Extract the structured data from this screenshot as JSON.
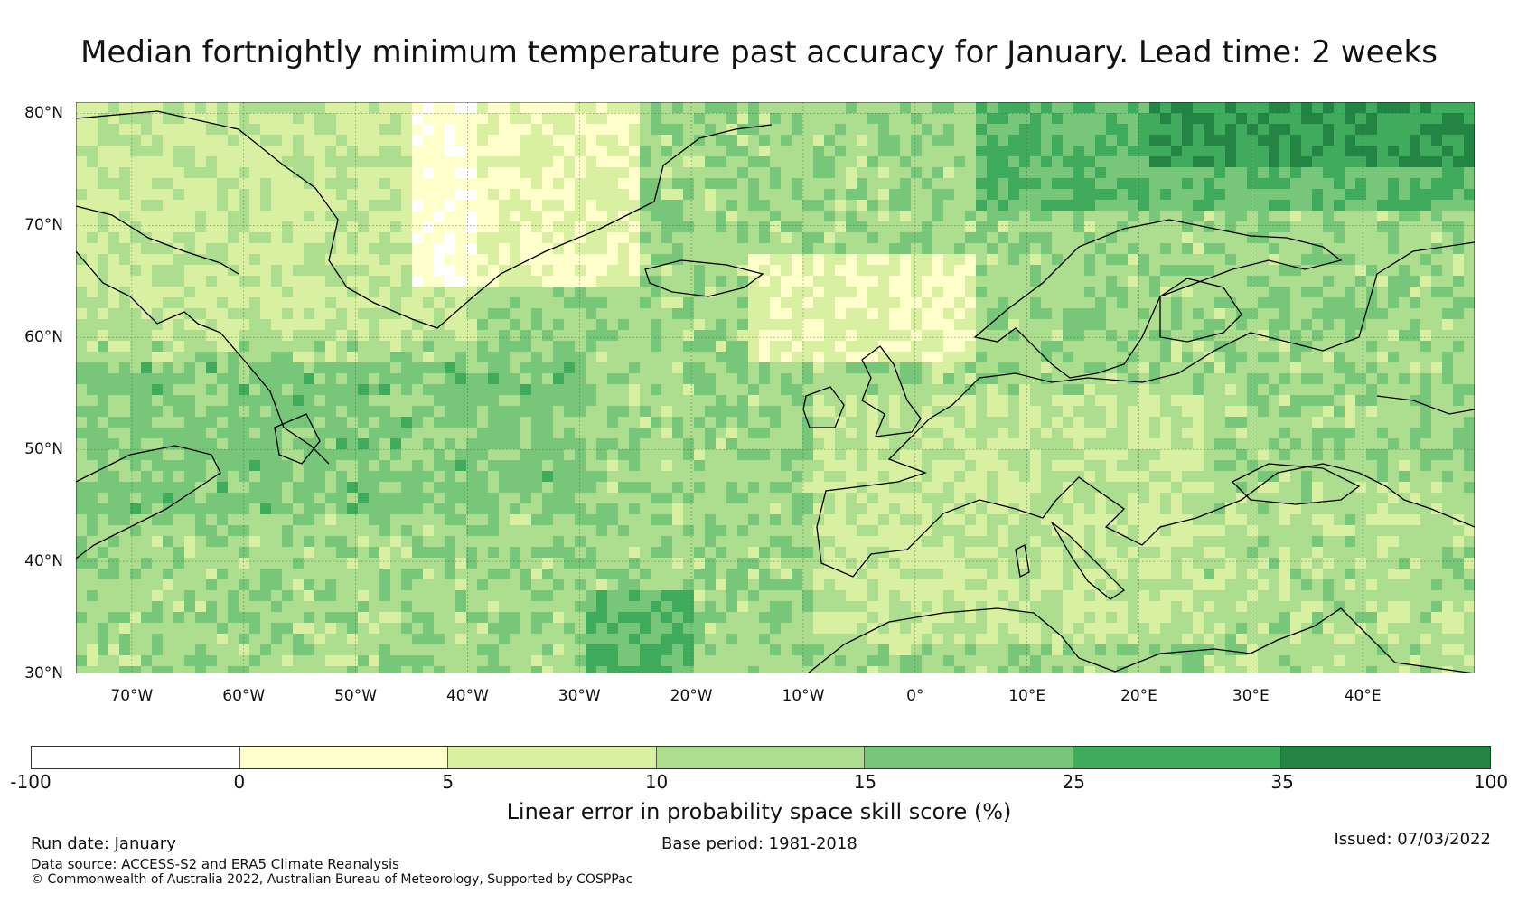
{
  "title": "Median fortnightly minimum temperature past accuracy for January. Lead time: 2 weeks",
  "map": {
    "region": "North Atlantic and Europe",
    "lat_range": [
      30,
      81
    ],
    "lon_range": [
      -75,
      50
    ],
    "lat_labels": [
      "80°N",
      "70°N",
      "60°N",
      "50°N",
      "40°N",
      "30°N"
    ],
    "lat_values": [
      80,
      70,
      60,
      50,
      40,
      30
    ],
    "lon_labels": [
      "70°W",
      "60°W",
      "50°W",
      "40°W",
      "30°W",
      "20°W",
      "10°W",
      "0°",
      "10°E",
      "20°E",
      "30°E",
      "40°E"
    ],
    "lon_values": [
      -70,
      -60,
      -50,
      -40,
      -30,
      -20,
      -10,
      0,
      10,
      20,
      30,
      40
    ]
  },
  "colorbar": {
    "ticks": [
      "-100",
      "0",
      "5",
      "10",
      "15",
      "25",
      "35",
      "100"
    ],
    "colors": [
      "#ffffff",
      "#ffffcc",
      "#d9f0a3",
      "#addd8e",
      "#78c679",
      "#41ab5d",
      "#238443"
    ],
    "label": "Linear error in probability space skill score (%)"
  },
  "footer": {
    "run_date": "Run date: January",
    "base_period": "Base period: 1981-2018",
    "issued": "Issued: 07/03/2022",
    "data_source": "Data source: ACCESS-S2 and ERA5 Climate Reanalysis",
    "copyright": "© Commonwealth of Australia 2022, Australian Bureau of Meteorology, Supported by COSPPac"
  }
}
